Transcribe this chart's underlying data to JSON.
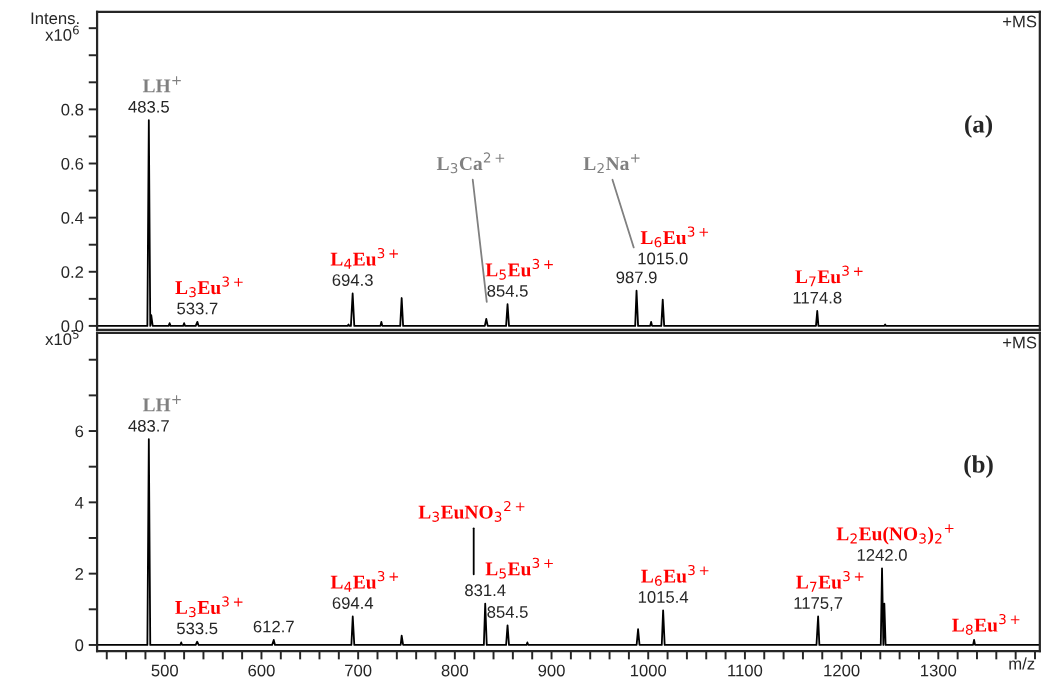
{
  "chart_data": [
    {
      "type": "line",
      "title": "(a)",
      "ylabel": "Intens.\nx10$^{6}$",
      "tick_labels": "y",
      "grid": false,
      "xlim": [
        430,
        1405
      ],
      "ylim": [
        -0.015,
        1.16
      ],
      "yticks": [
        {
          "value": 0,
          "label": "0.0"
        },
        {
          "value": 0.1,
          "label": null
        },
        {
          "value": 0.2,
          "label": "0.2"
        },
        {
          "value": 0.3,
          "label": null
        },
        {
          "value": 0.4,
          "label": "0.4"
        },
        {
          "value": 0.5,
          "label": null
        },
        {
          "value": 0.6,
          "label": "0.6"
        },
        {
          "value": 0.7,
          "label": null
        },
        {
          "value": 0.8,
          "label": "0.8"
        },
        {
          "value": 0.9,
          "label": null
        },
        {
          "value": 1.0,
          "label": null
        },
        {
          "value": 1.1,
          "label": null
        }
      ],
      "series": [
        {
          "color": "#000000",
          "x": [
            430,
            482,
            483.5,
            485,
            486,
            487.5,
            504,
            505,
            506,
            519,
            520,
            521,
            532,
            533.7,
            535,
            689,
            690,
            691,
            692.5,
            694.3,
            696,
            723,
            724,
            725,
            743.5,
            745,
            746.5,
            831,
            832.5,
            834,
            853,
            854.5,
            856,
            986.5,
            987.9,
            989.5,
            1002,
            1003,
            1004,
            1013.5,
            1015,
            1016.5,
            1173.5,
            1174.8,
            1176,
            1244,
            1245,
            1246,
            1405
          ],
          "values": [
            0,
            0,
            0.76,
            0,
            0.04,
            0,
            0,
            0.01,
            0,
            0,
            0.01,
            0,
            0,
            0.015,
            0,
            0,
            0.005,
            0,
            0,
            0.12,
            0,
            0,
            0.015,
            0,
            0,
            0.103,
            0,
            0,
            0.026,
            0,
            0,
            0.08,
            0,
            0,
            0.13,
            0,
            0,
            0.015,
            0,
            0,
            0.097,
            0,
            0,
            0.055,
            0,
            0,
            0.005,
            0,
            0
          ]
        },
        {
          "color": "#808080",
          "x": [
            818.5,
            833
          ],
          "values": [
            0.54,
            0.089
          ]
        },
        {
          "color": "#808080",
          "x": [
            963,
            985
          ],
          "values": [
            0.54,
            0.29
          ]
        }
      ],
      "annotations": [
        "+MS",
        {
          "text": "483.5",
          "x": 483.5,
          "y": 0.76
        },
        {
          "text": "LH$^{+}$",
          "x": 483.5,
          "y": 0.76
        },
        {
          "text": "533.7",
          "x": 533.7,
          "y": 0.015
        },
        {
          "text": "L$_{3}$Eu$^{3+}$",
          "x": 533.7,
          "y": 0.015
        },
        {
          "text": "694.3",
          "x": 694.3,
          "y": 0.12
        },
        {
          "text": "L$_{4}$Eu$^{3+}$",
          "x": 694.3,
          "y": 0.12
        },
        {
          "text": "L$_{3}$Ca$^{2+}$",
          "x": 818.5,
          "y": 0.54
        },
        {
          "text": "854.5",
          "x": 854.5,
          "y": 0.08
        },
        {
          "text": "L$_{5}$Eu$^{3+}$",
          "x": 854.5,
          "y": 0.08
        },
        {
          "text": "L$_{2}$Na$^{+}$",
          "x": 963,
          "y": 0.54
        },
        {
          "text": "987.9",
          "x": 987.9,
          "y": 0.13
        },
        {
          "text": "1015.0",
          "x": 1015,
          "y": 0.097
        },
        {
          "text": "L$_{6}$Eu$^{3+}$",
          "x": 1015,
          "y": 0.097
        },
        {
          "text": "1174.8",
          "x": 1174.8,
          "y": 0.055
        },
        {
          "text": "L$_{7}$Eu$^{3+}$",
          "x": 1174.8,
          "y": 0.055
        }
      ]
    },
    {
      "type": "line",
      "title": "(b)",
      "ylabel": "x10$^{5}$",
      "xlabel": "m/z",
      "grid": false,
      "xlim": [
        430,
        1405
      ],
      "ylim": [
        -0.17,
        8.75
      ],
      "xticks": [
        {
          "value": 440,
          "label": null
        },
        {
          "value": 460,
          "label": null
        },
        {
          "value": 480,
          "label": null
        },
        500,
        {
          "value": 520,
          "label": null
        },
        {
          "value": 540,
          "label": null
        },
        {
          "value": 560,
          "label": null
        },
        {
          "value": 580,
          "label": null
        },
        600,
        {
          "value": 620,
          "label": null
        },
        {
          "value": 640,
          "label": null
        },
        {
          "value": 660,
          "label": null
        },
        {
          "value": 680,
          "label": null
        },
        700,
        {
          "value": 720,
          "label": null
        },
        {
          "value": 740,
          "label": null
        },
        {
          "value": 760,
          "label": null
        },
        {
          "value": 780,
          "label": null
        },
        800,
        {
          "value": 820,
          "label": null
        },
        {
          "value": 840,
          "label": null
        },
        {
          "value": 860,
          "label": null
        },
        {
          "value": 880,
          "label": null
        },
        900,
        {
          "value": 920,
          "label": null
        },
        {
          "value": 940,
          "label": null
        },
        {
          "value": 960,
          "label": null
        },
        {
          "value": 980,
          "label": null
        },
        1000,
        {
          "value": 1020,
          "label": null
        },
        {
          "value": 1040,
          "label": null
        },
        {
          "value": 1060,
          "label": null
        },
        {
          "value": 1080,
          "label": null
        },
        1100,
        {
          "value": 1120,
          "label": null
        },
        {
          "value": 1140,
          "label": null
        },
        {
          "value": 1160,
          "label": null
        },
        {
          "value": 1180,
          "label": null
        },
        1200,
        {
          "value": 1220,
          "label": null
        },
        {
          "value": 1240,
          "label": null
        },
        {
          "value": 1260,
          "label": null
        },
        {
          "value": 1280,
          "label": null
        },
        1300,
        {
          "value": 1320,
          "label": null
        },
        {
          "value": 1340,
          "label": null
        },
        {
          "value": 1360,
          "label": null
        },
        {
          "value": 1380,
          "label": null
        },
        {
          "value": 1400,
          "label": null
        }
      ],
      "yticks": [
        0,
        {
          "value": 1,
          "label": null
        },
        2,
        {
          "value": 3,
          "label": null
        },
        4,
        {
          "value": 5,
          "label": null
        },
        6,
        {
          "value": 7,
          "label": null
        },
        {
          "value": 8,
          "label": null
        }
      ],
      "series": [
        {
          "color": "#000000",
          "x": [
            430,
            482,
            483.5,
            485,
            516,
            517,
            518,
            532,
            533.5,
            535,
            611,
            612.7,
            614,
            693,
            694.4,
            696,
            744,
            745,
            746.5,
            830,
            831.4,
            833,
            853,
            854.5,
            856,
            874,
            875,
            876,
            988,
            989.5,
            991,
            1014,
            1015.4,
            1017,
            1174,
            1175.7,
            1177,
            1240.5,
            1241.8,
            1243.2,
            1244.2,
            1245.5,
            1336,
            1337,
            1338,
            1405
          ],
          "values": [
            0,
            0,
            5.77,
            0,
            0,
            0.07,
            0,
            0,
            0.09,
            0,
            0,
            0.14,
            0,
            0,
            0.8,
            0,
            0,
            0.26,
            0,
            0,
            1.16,
            0,
            0,
            0.55,
            0,
            0,
            0.07,
            0,
            0,
            0.44,
            0,
            0,
            0.97,
            0,
            0,
            0.8,
            0,
            0,
            2.15,
            0,
            1.16,
            0,
            0,
            0.14,
            0,
            0
          ]
        },
        {
          "color": "#000000",
          "x": [
            819.5,
            819.5
          ],
          "values": [
            3.27,
            1.98
          ]
        }
      ],
      "annotations": [
        "+MS",
        {
          "text": "483.7",
          "x": 483.5,
          "y": 5.77
        },
        {
          "text": "LH$^{+}$",
          "x": 483.5,
          "y": 5.77
        },
        {
          "text": "533.5",
          "x": 533.5,
          "y": 0.09
        },
        {
          "text": "L$_{3}$Eu$^{3+}$",
          "x": 533.5,
          "y": 0.09
        },
        {
          "text": "612.7",
          "x": 612.7,
          "y": 0.14
        },
        {
          "text": "694.4",
          "x": 694.4,
          "y": 0.8
        },
        {
          "text": "L$_{4}$Eu$^{3+}$",
          "x": 694.4,
          "y": 0.8
        },
        {
          "text": "L$_{3}$EuNO$_{3}$$^{2+}$",
          "x": 819.5,
          "y": 3.27
        },
        {
          "text": "831.4",
          "x": 831.4,
          "y": 1.16
        },
        {
          "text": "854.5",
          "x": 854.5,
          "y": 0.55
        },
        {
          "text": "L$_{5}$Eu$^{3+}$",
          "x": 854.5,
          "y": 0.55
        },
        {
          "text": "1015.4",
          "x": 1015.4,
          "y": 0.97
        },
        {
          "text": "L$_{6}$Eu$^{3+}$",
          "x": 1015.4,
          "y": 0.97
        },
        {
          "text": "1175,7",
          "x": 1175.7,
          "y": 0.8
        },
        {
          "text": "L$_{7}$Eu$^{3+}$",
          "x": 1175.7,
          "y": 0.8
        },
        {
          "text": "1242.0",
          "x": 1241.8,
          "y": 2.15
        },
        {
          "text": "L$_{2}$Eu(NO$_{3}$)$_{2}$$^{+}$",
          "x": 1241.8,
          "y": 2.15
        },
        {
          "text": "L$_{8}$Eu$^{3+}$",
          "x": 1337,
          "y": 0.14
        }
      ]
    }
  ]
}
